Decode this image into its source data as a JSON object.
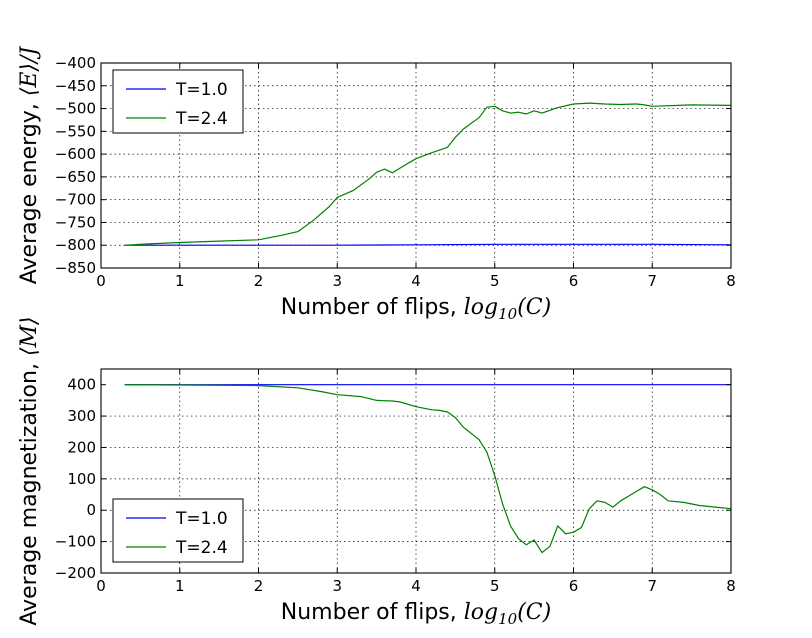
{
  "chart_data": [
    {
      "type": "line",
      "xlabel_text": "Number of flips, ",
      "xlabel_math": "log",
      "xlabel_sub": "10",
      "xlabel_tail": "(C)",
      "ylabel_text": "Average energy, ",
      "ylabel_math": "⟨E⟩/J",
      "xlim": [
        0,
        8
      ],
      "ylim": [
        -850,
        -400
      ],
      "xticks": [
        0,
        1,
        2,
        3,
        4,
        5,
        6,
        7,
        8
      ],
      "xtick_labels": [
        "0",
        "1",
        "2",
        "3",
        "4",
        "5",
        "6",
        "7",
        "8"
      ],
      "yticks": [
        -850,
        -800,
        -750,
        -700,
        -650,
        -600,
        -550,
        -500,
        -450,
        -400
      ],
      "ytick_labels": [
        "−850",
        "−800",
        "−750",
        "−700",
        "−650",
        "−600",
        "−550",
        "−500",
        "−450",
        "−400"
      ],
      "grid": true,
      "legend_position": "top-left",
      "series": [
        {
          "name": "T=1.0",
          "color": "#0000ff",
          "x": [
            0.3,
            1,
            2,
            3,
            4,
            5,
            6,
            7,
            8
          ],
          "y": [
            -800,
            -800,
            -800,
            -800,
            -799,
            -798,
            -798,
            -798,
            -799
          ]
        },
        {
          "name": "T=2.4",
          "color": "#008000",
          "x": [
            0.3,
            0.6,
            1.0,
            1.5,
            2.0,
            2.3,
            2.5,
            2.7,
            2.9,
            3.0,
            3.2,
            3.4,
            3.5,
            3.6,
            3.7,
            3.9,
            4.0,
            4.2,
            4.4,
            4.5,
            4.6,
            4.8,
            4.9,
            5.0,
            5.1,
            5.2,
            5.3,
            5.4,
            5.5,
            5.6,
            5.8,
            6.0,
            6.2,
            6.4,
            6.6,
            6.8,
            6.9,
            7.0,
            7.5,
            8.0
          ],
          "y": [
            -800,
            -797,
            -794,
            -791,
            -788,
            -778,
            -770,
            -745,
            -715,
            -695,
            -680,
            -655,
            -640,
            -633,
            -641,
            -620,
            -610,
            -597,
            -585,
            -563,
            -545,
            -520,
            -497,
            -495,
            -505,
            -510,
            -508,
            -512,
            -505,
            -510,
            -498,
            -490,
            -488,
            -490,
            -491,
            -490,
            -492,
            -495,
            -492,
            -493
          ]
        }
      ]
    },
    {
      "type": "line",
      "xlabel_text": "Number of flips, ",
      "xlabel_math": "log",
      "xlabel_sub": "10",
      "xlabel_tail": "(C)",
      "ylabel_text": "Average magnetization, ",
      "ylabel_math": "⟨M⟩",
      "xlim": [
        0,
        8
      ],
      "ylim": [
        -200,
        450
      ],
      "xticks": [
        0,
        1,
        2,
        3,
        4,
        5,
        6,
        7,
        8
      ],
      "xtick_labels": [
        "0",
        "1",
        "2",
        "3",
        "4",
        "5",
        "6",
        "7",
        "8"
      ],
      "yticks": [
        -200,
        -100,
        0,
        100,
        200,
        300,
        400
      ],
      "ytick_labels": [
        "−200",
        "−100",
        "0",
        "100",
        "200",
        "300",
        "400"
      ],
      "grid": true,
      "legend_position": "bottom-left",
      "series": [
        {
          "name": "T=1.0",
          "color": "#0000ff",
          "x": [
            0.3,
            1,
            2,
            3,
            4,
            5,
            6,
            7,
            8
          ],
          "y": [
            400,
            400,
            400,
            400,
            400,
            400,
            400,
            400,
            400
          ]
        },
        {
          "name": "T=2.4",
          "color": "#008000",
          "x": [
            0.3,
            1.0,
            2.0,
            2.5,
            2.8,
            3.0,
            3.3,
            3.5,
            3.7,
            3.8,
            4.0,
            4.2,
            4.3,
            4.4,
            4.5,
            4.6,
            4.7,
            4.8,
            4.9,
            5.0,
            5.1,
            5.2,
            5.3,
            5.4,
            5.5,
            5.6,
            5.7,
            5.8,
            5.9,
            6.0,
            6.1,
            6.2,
            6.3,
            6.4,
            6.5,
            6.6,
            6.7,
            6.8,
            6.9,
            7.0,
            7.1,
            7.2,
            7.4,
            7.6,
            7.8,
            8.0
          ],
          "y": [
            400,
            399,
            397,
            390,
            378,
            368,
            362,
            350,
            348,
            345,
            330,
            320,
            318,
            313,
            295,
            265,
            245,
            225,
            185,
            110,
            20,
            -50,
            -90,
            -110,
            -95,
            -135,
            -115,
            -50,
            -75,
            -70,
            -55,
            5,
            30,
            25,
            10,
            30,
            45,
            60,
            75,
            65,
            50,
            30,
            25,
            15,
            10,
            5
          ]
        }
      ]
    }
  ]
}
